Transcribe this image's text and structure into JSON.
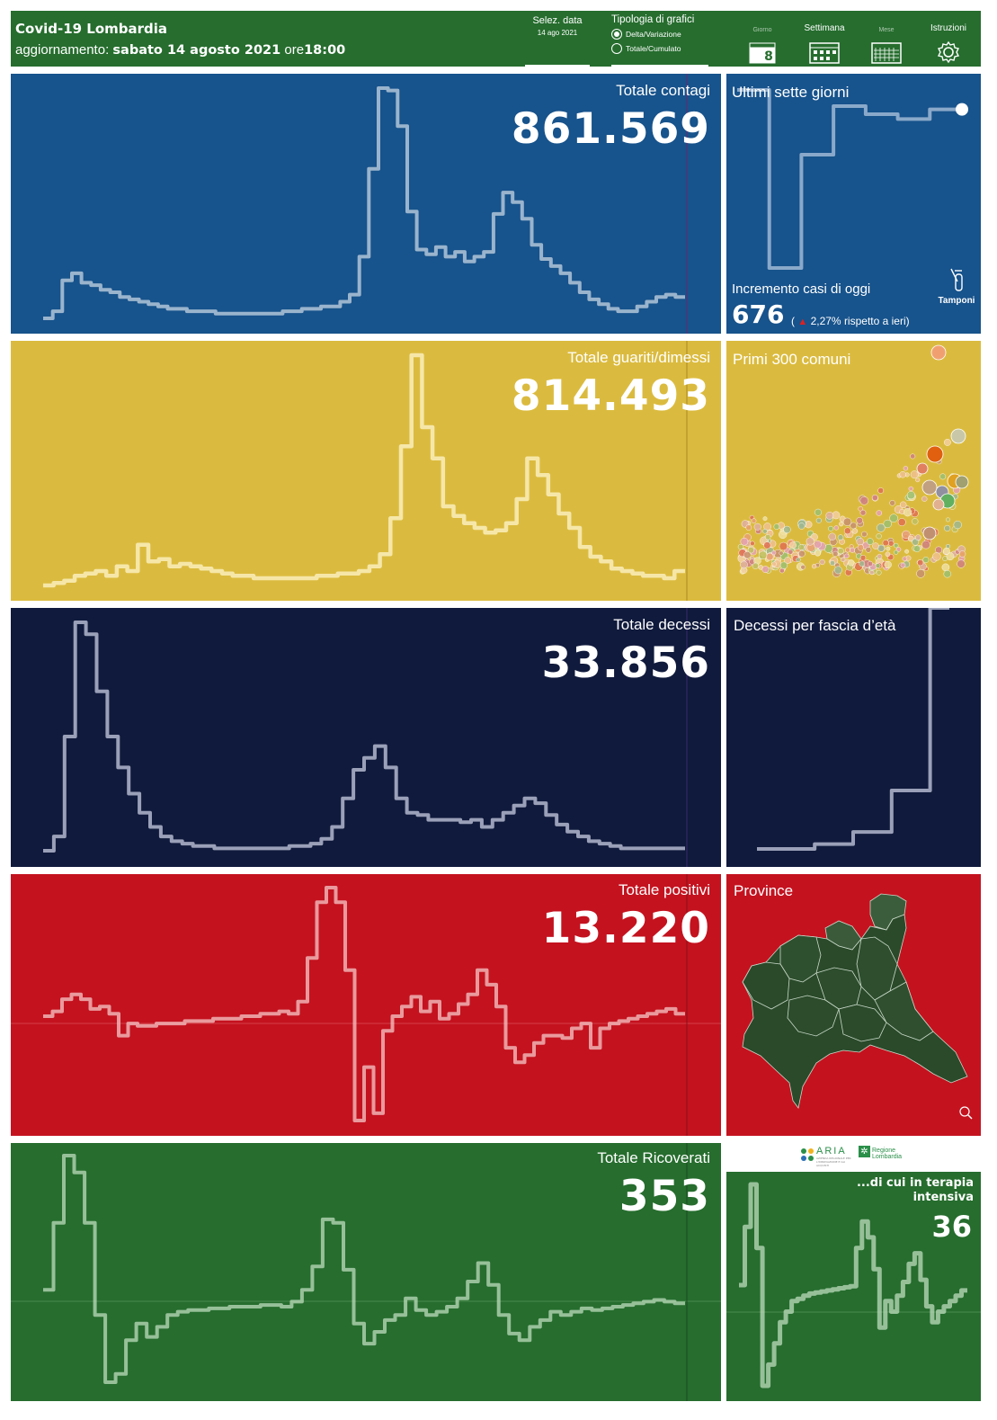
{
  "header": {
    "title": "Covid-19 Lombardia",
    "update_prefix": "aggiornamento:",
    "update_date": "sabato 14 agosto 2021",
    "update_time_prefix": "ore",
    "update_time": "18:00",
    "date_selector": {
      "label": "Selez. data",
      "value": "14 ago 2021"
    },
    "chart_type": {
      "label": "Tipologia di grafici",
      "options": [
        {
          "label": "Delta/Variazione",
          "selected": true
        },
        {
          "label": "Totale/Cumulato",
          "selected": false
        }
      ]
    },
    "period_buttons": [
      {
        "label": "Giorno",
        "icon": "calendar-day-icon",
        "badge": "8",
        "active": false
      },
      {
        "label": "Settimana",
        "icon": "calendar-week-icon",
        "active": true
      },
      {
        "label": "Mese",
        "icon": "calendar-month-icon",
        "active": false
      }
    ],
    "instructions": {
      "label": "Istruzioni",
      "icon": "gear-icon"
    }
  },
  "colors": {
    "header": "#266d2e",
    "contagi": "#17538c",
    "guariti": "#dbbb3f",
    "decessi": "#101a3c",
    "positivi": "#c4121f",
    "ricoverati": "#266d2e"
  },
  "panels": {
    "contagi": {
      "label": "Totale contagi",
      "value": "861.569"
    },
    "guariti": {
      "label": "Totale guariti/dimessi",
      "value": "814.493"
    },
    "decessi": {
      "label": "Totale decessi",
      "value": "33.856"
    },
    "positivi": {
      "label": "Totale positivi",
      "value": "13.220"
    },
    "ricoverati": {
      "label": "Totale Ricoverati",
      "value": "353"
    }
  },
  "side": {
    "seven_days": {
      "label": "Ultimi sette giorni",
      "increment_label": "Incremento casi di oggi",
      "increment_value": "676",
      "increment_pct_open": "(",
      "increment_pct": "2,27% rispetto a  ieri)",
      "tamponi_label": "Tamponi",
      "tamponi_icon": "test-tube-icon"
    },
    "comuni": {
      "label": "Primi 300 comuni"
    },
    "age": {
      "label": "Decessi per fascia d’età"
    },
    "province": {
      "label": "Province",
      "zoom_icon": "zoom-icon"
    },
    "logos": {
      "aria": "ARIA",
      "aria_sub": "AZIENDA REGIONALE PER L'INNOVAZIONE E GLI ACQUISTI",
      "regione_line1": "Regione",
      "regione_line2": "Lombardia"
    },
    "terapia": {
      "label": "...di cui in terapia intensiva",
      "value": "36"
    }
  },
  "chart_data": [
    {
      "type": "line",
      "name": "contagi",
      "step": true,
      "values": [
        2,
        5,
        18,
        21,
        17,
        16,
        14,
        13,
        11,
        10,
        9,
        8,
        7,
        6,
        6,
        5,
        5,
        5,
        4,
        4,
        4,
        4,
        4,
        4,
        4,
        5,
        5,
        6,
        6,
        7,
        7,
        9,
        12,
        28,
        65,
        99,
        98,
        83,
        47,
        31,
        29,
        32,
        28,
        30,
        26,
        28,
        30,
        46,
        55,
        51,
        44,
        33,
        27,
        24,
        21,
        17,
        13,
        10,
        8,
        6,
        5,
        5,
        7,
        9,
        11,
        12,
        11
      ]
    },
    {
      "type": "line",
      "name": "guariti",
      "step": true,
      "values": [
        2,
        3,
        4,
        6,
        7,
        8,
        6,
        10,
        8,
        19,
        12,
        13,
        10,
        11,
        10,
        9,
        8,
        7,
        6,
        6,
        5,
        5,
        5,
        5,
        5,
        5,
        6,
        6,
        7,
        7,
        8,
        10,
        15,
        30,
        60,
        98,
        68,
        55,
        35,
        31,
        28,
        26,
        24,
        25,
        28,
        38,
        55,
        48,
        40,
        32,
        26,
        18,
        14,
        12,
        9,
        8,
        7,
        6,
        6,
        5,
        8
      ]
    },
    {
      "type": "line",
      "name": "decessi",
      "step": true,
      "values": [
        2,
        8,
        50,
        98,
        93,
        69,
        50,
        37,
        26,
        18,
        12,
        8,
        6,
        5,
        4,
        4,
        3,
        3,
        3,
        3,
        3,
        3,
        3,
        4,
        4,
        5,
        7,
        12,
        24,
        36,
        41,
        46,
        37,
        24,
        18,
        17,
        15,
        15,
        15,
        14,
        15,
        12,
        15,
        18,
        21,
        24,
        22,
        17,
        13,
        10,
        8,
        6,
        5,
        4,
        3,
        3,
        3,
        3,
        3,
        3
      ]
    },
    {
      "type": "line",
      "name": "positivi",
      "step": true,
      "values": [
        1,
        3,
        8,
        10,
        8,
        4,
        5,
        2,
        -7,
        -2,
        -3,
        -3,
        -2,
        -2,
        -2,
        -1,
        -1,
        -1,
        0,
        0,
        0,
        1,
        1,
        2,
        2,
        3,
        2,
        7,
        25,
        48,
        54,
        48,
        20,
        -42,
        -20,
        -39,
        -5,
        1,
        5,
        9,
        3,
        7,
        0,
        2,
        6,
        10,
        20,
        14,
        5,
        -12,
        -18,
        -15,
        -10,
        -7,
        -7,
        -8,
        -4,
        -2,
        -12,
        -4,
        -2,
        -1,
        0,
        1,
        2,
        3,
        4,
        2
      ]
    },
    {
      "type": "line",
      "name": "ricoverati",
      "step": true,
      "values": [
        10,
        50,
        90,
        80,
        50,
        -5,
        -45,
        -40,
        -20,
        -10,
        -18,
        -12,
        -5,
        -3,
        -2,
        -2,
        -1,
        -1,
        0,
        0,
        0,
        1,
        1,
        0,
        3,
        10,
        24,
        52,
        50,
        22,
        -10,
        -22,
        -15,
        -8,
        -5,
        5,
        -2,
        -5,
        -3,
        0,
        5,
        15,
        26,
        13,
        -5,
        -16,
        -20,
        -12,
        -8,
        -3,
        -5,
        -3,
        -1,
        -2,
        -1,
        0,
        1,
        2,
        3,
        4,
        3,
        2
      ]
    },
    {
      "type": "line",
      "name": "ultimi_sette_giorni",
      "step": true,
      "values": [
        100,
        100,
        -10,
        -10,
        60,
        60,
        90,
        90,
        85,
        85,
        82,
        82,
        88,
        88
      ]
    },
    {
      "type": "line",
      "name": "decessi_fascia_eta",
      "step": true,
      "values": [
        1,
        1,
        1,
        3,
        3,
        8,
        8,
        25,
        25,
        100
      ]
    },
    {
      "type": "line",
      "name": "terapia_intensiva",
      "step": true,
      "values": [
        5,
        60,
        100,
        40,
        -90,
        -70,
        -50,
        -30,
        -20,
        -10,
        -8,
        -5,
        -3,
        -2,
        -1,
        0,
        1,
        2,
        3,
        4,
        40,
        65,
        50,
        20,
        -35,
        -10,
        -20,
        -5,
        8,
        25,
        35,
        10,
        -15,
        -30,
        -20,
        -15,
        -10,
        -5,
        0
      ]
    },
    {
      "type": "scatter",
      "name": "primi_300_comuni"
    }
  ]
}
